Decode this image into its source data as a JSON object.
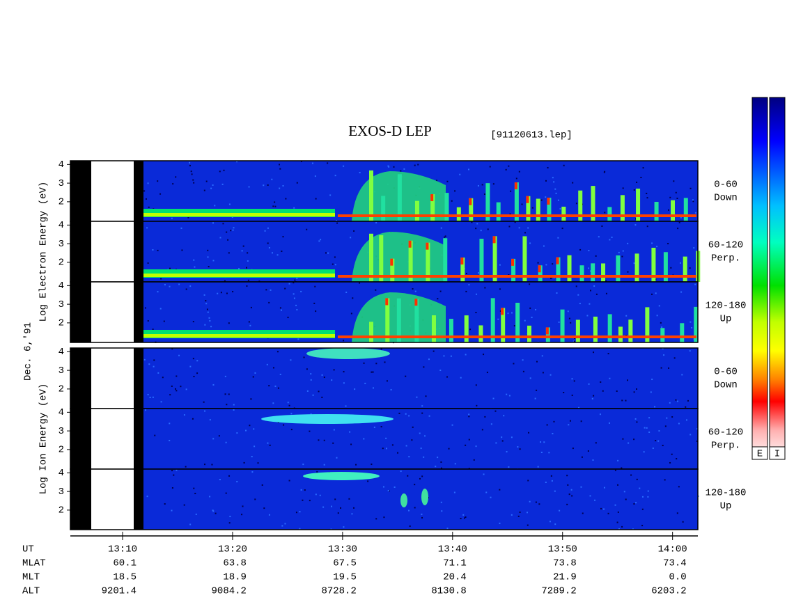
{
  "chart_data": {
    "type": "spectrogram",
    "title": "EXOS-D LEP",
    "file": "[91120613.lep]",
    "date_label": "Dec. 6,'91",
    "groups": [
      {
        "ylabel": "Log Electron Energy (eV)",
        "species": "electron",
        "panels": [
          {
            "label": "0-60",
            "direction": "Down",
            "ylim": [
              0.95,
              4.2
            ],
            "yticks": [
              2,
              3,
              4
            ]
          },
          {
            "label": "60-120",
            "direction": "Perp.",
            "ylim": [
              0.95,
              4.2
            ],
            "yticks": [
              2,
              3,
              4
            ]
          },
          {
            "label": "120-180",
            "direction": "Up",
            "ylim": [
              0.95,
              4.2
            ],
            "yticks": [
              2,
              3,
              4
            ]
          }
        ]
      },
      {
        "ylabel": "Log Ion Energy (eV)",
        "species": "ion",
        "panels": [
          {
            "label": "0-60",
            "direction": "Down",
            "ylim": [
              0.95,
              4.2
            ],
            "yticks": [
              2,
              3,
              4
            ]
          },
          {
            "label": "60-120",
            "direction": "Perp.",
            "ylim": [
              0.95,
              4.2
            ],
            "yticks": [
              2,
              3,
              4
            ]
          },
          {
            "label": "120-180",
            "direction": "Up",
            "ylim": [
              0.95,
              4.2
            ],
            "yticks": [
              2,
              3,
              4
            ]
          }
        ]
      }
    ],
    "xlim": [
      5.25,
      62.3
    ],
    "xticks": [
      {
        "value": 10,
        "label": "13:10"
      },
      {
        "value": 20,
        "label": "13:20"
      },
      {
        "value": 30,
        "label": "13:30"
      },
      {
        "value": 40,
        "label": "13:40"
      },
      {
        "value": 50,
        "label": "13:50"
      },
      {
        "value": 60,
        "label": "14:00"
      }
    ],
    "orbit_rows": [
      {
        "name": "UT"
      },
      {
        "name": "MLAT",
        "values": [
          "60.1",
          "63.8",
          "67.5",
          "71.1",
          "73.8",
          "73.4"
        ]
      },
      {
        "name": "MLT",
        "values": [
          "18.5",
          "18.9",
          "19.5",
          "20.4",
          "21.9",
          "0.0"
        ]
      },
      {
        "name": "ALT",
        "values": [
          "9201.4",
          "9084.2",
          "8728.2",
          "8130.8",
          "7289.2",
          "6203.2"
        ]
      }
    ],
    "colorbar_labels": [
      "E",
      "I"
    ]
  }
}
